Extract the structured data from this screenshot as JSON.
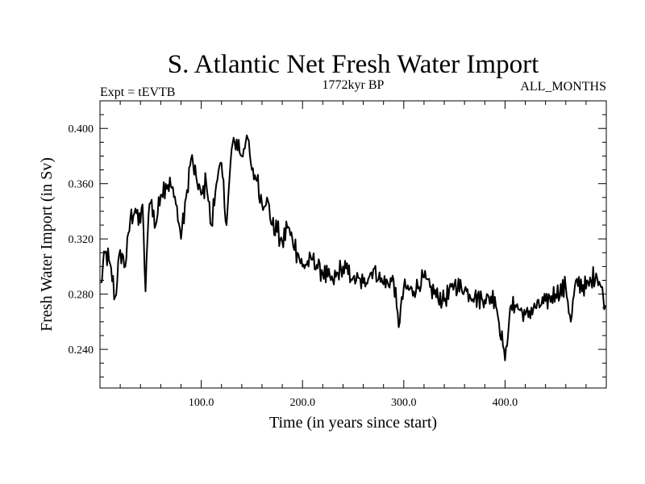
{
  "chart_data": {
    "type": "line",
    "title": "S. Atlantic Net Fresh Water Import",
    "subtitle_left": "Expt = tEVTB",
    "subtitle_center": "1772kyr BP",
    "subtitle_right": "ALL_MONTHS",
    "xlabel": "Time (in years since start)",
    "ylabel": "Fresh Water Import (in Sv)",
    "xlim": [
      0,
      500
    ],
    "ylim": [
      0.212,
      0.42
    ],
    "x_ticks": [
      100,
      200,
      300,
      400
    ],
    "x_tick_labels": [
      "100.0",
      "200.0",
      "300.0",
      "400.0"
    ],
    "y_ticks": [
      0.24,
      0.28,
      0.32,
      0.36,
      0.4
    ],
    "y_tick_labels": [
      "0.240",
      "0.280",
      "0.320",
      "0.360",
      "0.400"
    ],
    "grid": false,
    "series": [
      {
        "name": "Fresh Water Import",
        "x": [
          1,
          5,
          10,
          15,
          20,
          25,
          30,
          35,
          38,
          42,
          45,
          48,
          50,
          55,
          60,
          65,
          70,
          75,
          80,
          85,
          90,
          95,
          100,
          105,
          110,
          115,
          120,
          125,
          130,
          135,
          140,
          145,
          150,
          155,
          160,
          165,
          170,
          175,
          180,
          185,
          190,
          195,
          200,
          210,
          220,
          230,
          240,
          250,
          260,
          270,
          280,
          290,
          295,
          300,
          310,
          320,
          330,
          340,
          350,
          360,
          370,
          380,
          390,
          398,
          400,
          405,
          410,
          420,
          430,
          440,
          450,
          460,
          465,
          470,
          480,
          490,
          495,
          499
        ],
        "values": [
          0.288,
          0.31,
          0.302,
          0.278,
          0.312,
          0.3,
          0.335,
          0.342,
          0.33,
          0.345,
          0.282,
          0.338,
          0.346,
          0.33,
          0.352,
          0.36,
          0.358,
          0.345,
          0.32,
          0.35,
          0.378,
          0.365,
          0.352,
          0.36,
          0.33,
          0.36,
          0.375,
          0.33,
          0.385,
          0.392,
          0.38,
          0.395,
          0.37,
          0.362,
          0.345,
          0.35,
          0.33,
          0.325,
          0.318,
          0.328,
          0.32,
          0.31,
          0.3,
          0.305,
          0.295,
          0.29,
          0.3,
          0.292,
          0.288,
          0.298,
          0.287,
          0.29,
          0.256,
          0.285,
          0.282,
          0.292,
          0.28,
          0.275,
          0.287,
          0.283,
          0.278,
          0.276,
          0.278,
          0.242,
          0.232,
          0.27,
          0.272,
          0.265,
          0.27,
          0.275,
          0.28,
          0.285,
          0.26,
          0.29,
          0.284,
          0.295,
          0.285,
          0.272
        ]
      }
    ]
  }
}
